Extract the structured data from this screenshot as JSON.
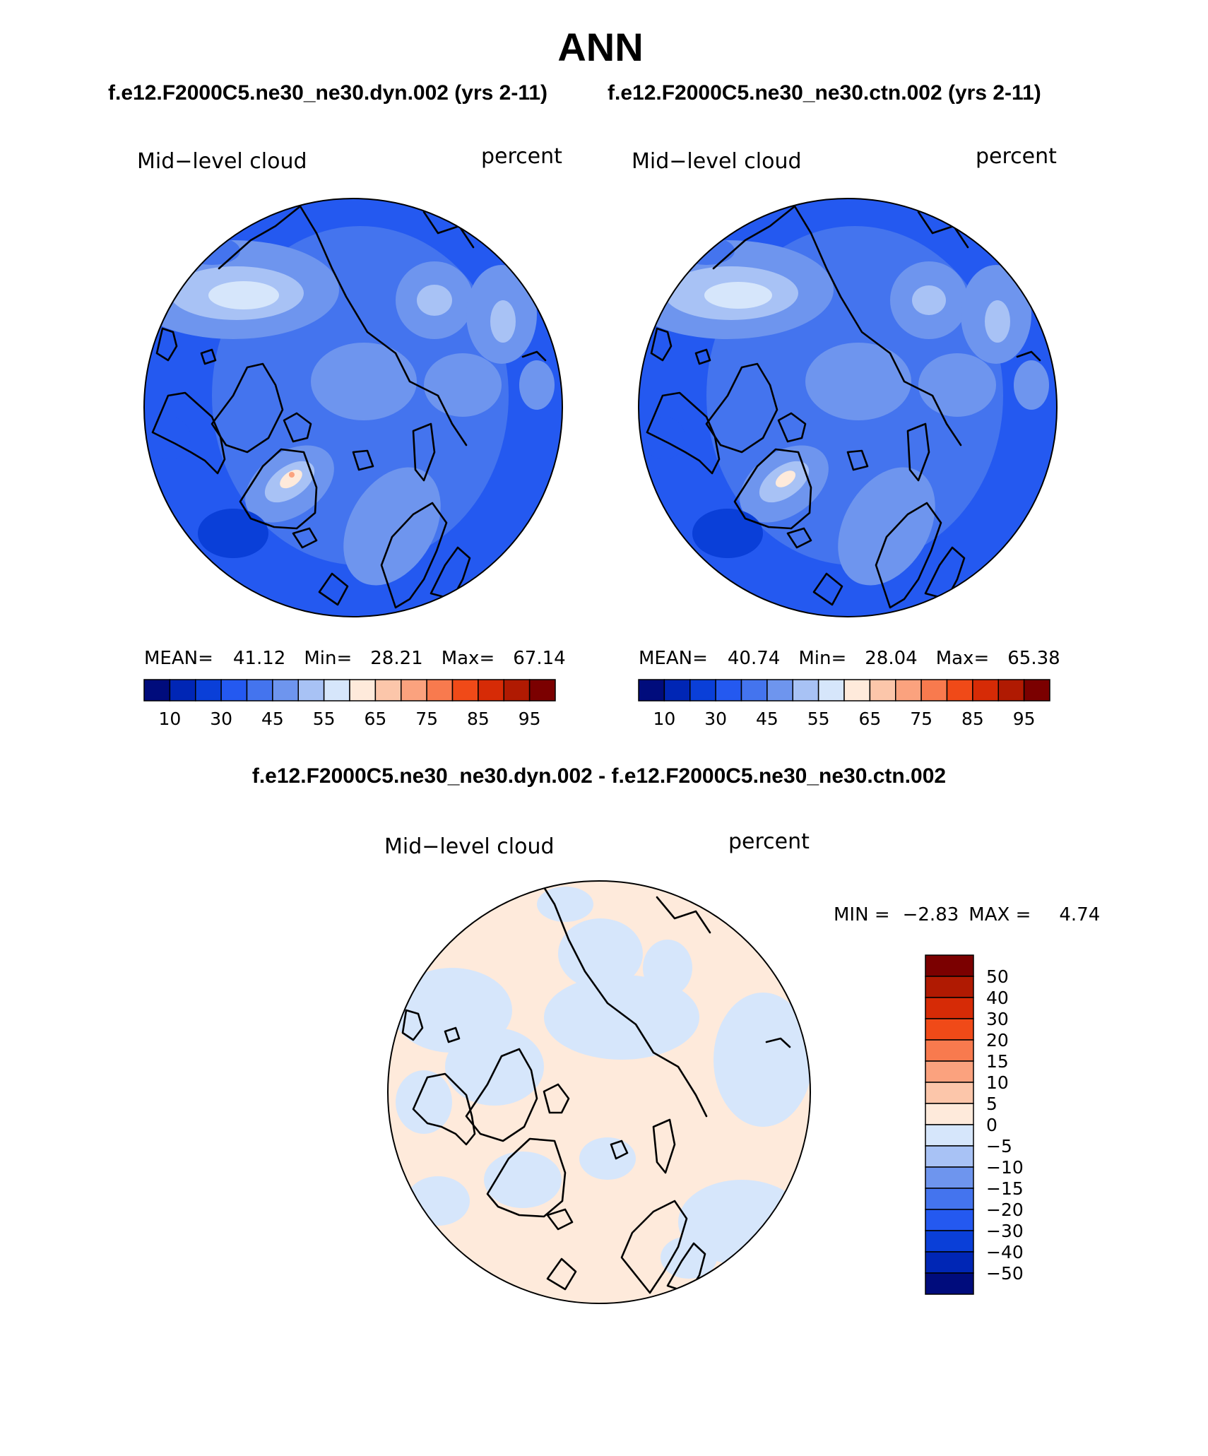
{
  "title": "ANN",
  "subtitle_left": "f.e12.F2000C5.ne30_ne30.dyn.002 (yrs 2-11)",
  "subtitle_right": "f.e12.F2000C5.ne30_ne30.ctn.002 (yrs 2-11)",
  "diff_title": "f.e12.F2000C5.ne30_ne30.dyn.002 - f.e12.F2000C5.ne30_ne30.ctn.002",
  "maps": [
    {
      "variable": "Mid−level cloud",
      "units": "percent",
      "stats": {
        "mean_label": "MEAN=",
        "mean": "41.12",
        "min_label": "Min=",
        "min": "28.21",
        "max_label": "Max=",
        "max": "67.14"
      }
    },
    {
      "variable": "Mid−level cloud",
      "units": "percent",
      "stats": {
        "mean_label": "MEAN=",
        "mean": "40.74",
        "min_label": "Min=",
        "min": "28.04",
        "max_label": "Max=",
        "max": "65.38"
      }
    },
    {
      "variable": "Mid−level cloud",
      "units": "percent",
      "stats": {
        "min_label": "MIN =",
        "min": "−2.83",
        "max_label": "MAX =",
        "max": "4.74"
      }
    }
  ],
  "colorbar_main": {
    "colors": [
      "#000c7c",
      "#0026b5",
      "#0a3fd8",
      "#2459f0",
      "#4474ee",
      "#6e95ee",
      "#a8c2f5",
      "#d6e6fb",
      "#feeadb",
      "#fcc6aa",
      "#fba27e",
      "#f87a4e",
      "#f04a18",
      "#d62b06",
      "#b01a02",
      "#7b0000"
    ],
    "labels": [
      "10",
      "30",
      "45",
      "55",
      "65",
      "75",
      "85",
      "95"
    ]
  },
  "colorbar_diff": {
    "colors": [
      "#7b0000",
      "#b01a02",
      "#d62b06",
      "#f04a18",
      "#f87a4e",
      "#fba27e",
      "#fcc6aa",
      "#feeadb",
      "#d6e6fb",
      "#a8c2f5",
      "#6e95ee",
      "#4474ee",
      "#2459f0",
      "#0a3fd8",
      "#0026b5",
      "#000c7c"
    ],
    "labels": [
      "50",
      "40",
      "30",
      "20",
      "15",
      "10",
      "5",
      "0",
      "−5",
      "−10",
      "−15",
      "−20",
      "−30",
      "−40",
      "−50"
    ]
  }
}
